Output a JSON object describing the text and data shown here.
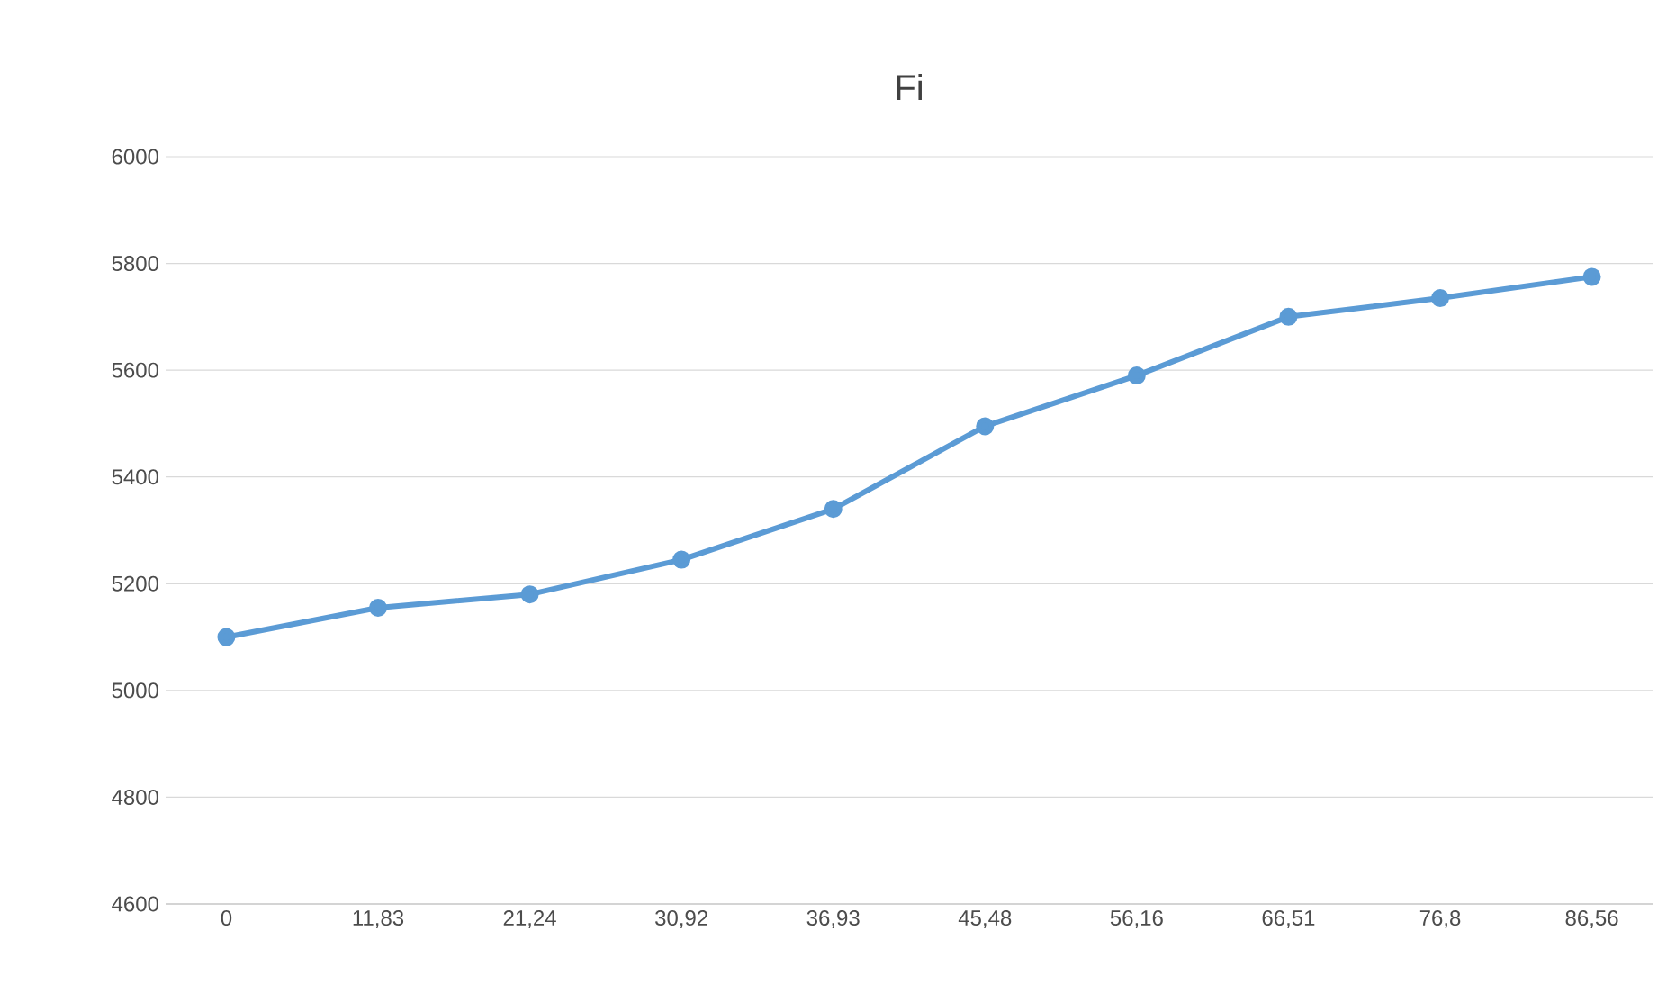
{
  "chart_data": {
    "type": "line",
    "title": "Fi",
    "categories": [
      "0",
      "11,83",
      "21,24",
      "30,92",
      "36,93",
      "45,48",
      "56,16",
      "66,51",
      "76,8",
      "86,56"
    ],
    "series": [
      {
        "color": "#5b9bd5",
        "values": [
          5100,
          5155,
          5180,
          5245,
          5340,
          5495,
          5590,
          5700,
          5735,
          5775
        ]
      }
    ],
    "ylim": [
      4600,
      6000
    ],
    "yticks": [
      4600,
      4800,
      5000,
      5200,
      5400,
      5600,
      5800,
      6000
    ],
    "grid": "y",
    "marker": "circle",
    "line_style": "solid"
  }
}
